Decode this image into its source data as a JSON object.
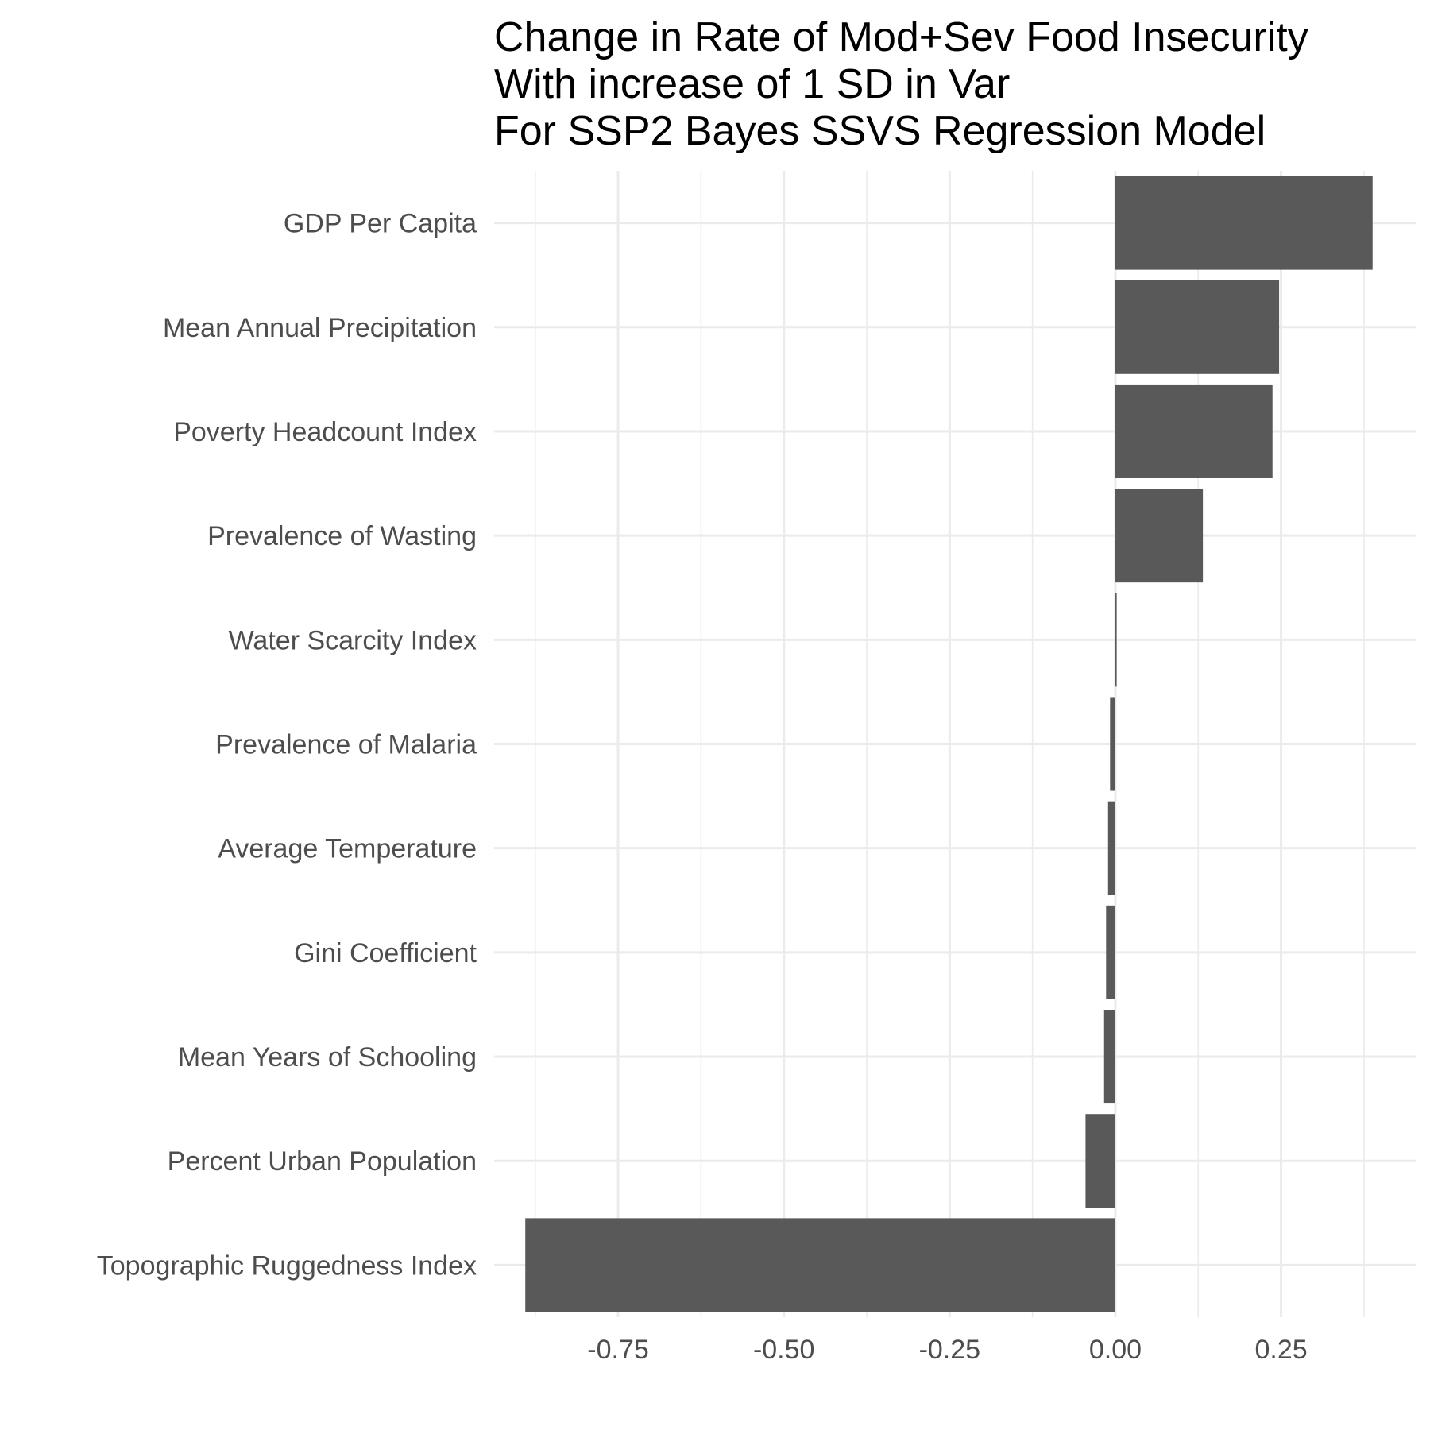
{
  "chart_data": {
    "type": "bar",
    "orientation": "horizontal",
    "title_lines": [
      "Change in Rate of Mod+Sev Food Insecurity",
      "With increase of 1 SD in Var",
      "For SSP2 Bayes SSVS Regression Model"
    ],
    "xlabel": "",
    "ylabel": "",
    "categories": [
      "GDP Per Capita",
      "Mean Annual Precipitation",
      "Poverty Headcount Index",
      "Prevalence of Wasting",
      "Water Scarcity Index",
      "Prevalence of Malaria",
      "Average Temperature",
      "Gini Coefficient",
      "Mean Years of Schooling",
      "Percent Urban Population",
      "Topographic Ruggedness Index"
    ],
    "values": [
      0.388,
      0.247,
      0.237,
      0.132,
      0.002,
      -0.008,
      -0.011,
      -0.014,
      -0.017,
      -0.045,
      -0.89
    ],
    "x_ticks": [
      -0.75,
      -0.5,
      -0.25,
      0.0,
      0.25
    ],
    "x_tick_labels": [
      "-0.75",
      "-0.50",
      "-0.25",
      "0.00",
      "0.25"
    ],
    "xlim": [
      -0.937,
      0.453
    ],
    "grid": true,
    "legend": "none",
    "bar_color": "#595959",
    "grid_color": "#ebebeb"
  }
}
